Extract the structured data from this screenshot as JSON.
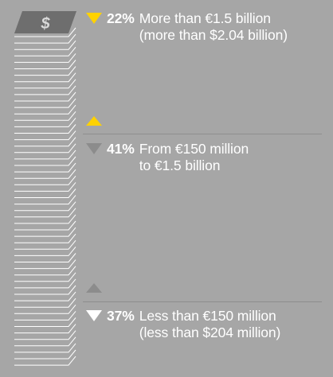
{
  "chart_data": {
    "type": "bar",
    "title": "",
    "icon": "dollar-bill-stack",
    "currency_symbol": "$",
    "colors": {
      "background": "#a6a6a6",
      "accent": "#ffd200",
      "muted": "#8c8c8c",
      "text": "#ffffff"
    },
    "tiers": [
      {
        "id": "large",
        "value": 22,
        "pct_label": "22%",
        "marker_color": "#ffd200",
        "lines": [
          "More than €1.5 billion",
          "(more than $2.04 billion)"
        ]
      },
      {
        "id": "mid",
        "value": 41,
        "pct_label": "41%",
        "marker_color": "#8c8c8c",
        "lines": [
          "From €150 million",
          "to €1.5 billion"
        ]
      },
      {
        "id": "small",
        "value": 37,
        "pct_label": "37%",
        "marker_color": "#ffffff",
        "lines": [
          "Less than €150 million",
          "(less than $204 million)"
        ]
      }
    ]
  }
}
